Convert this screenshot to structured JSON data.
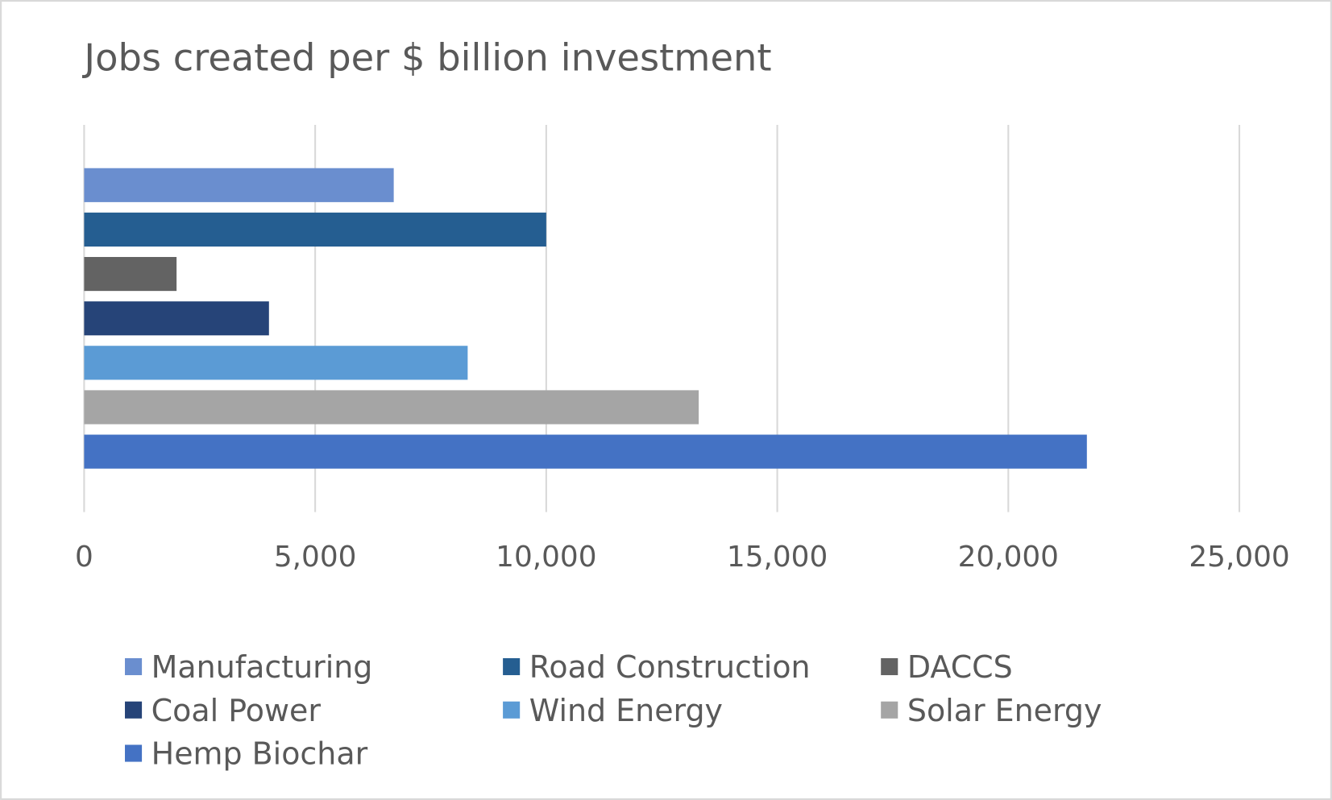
{
  "chart_data": {
    "type": "bar",
    "orientation": "horizontal",
    "title": "Jobs created per $ billion investment",
    "xlabel": "",
    "ylabel": "",
    "xlim": [
      0,
      25000
    ],
    "x_ticks": [
      "0",
      "5,000",
      "10,000",
      "15,000",
      "20,000",
      "25,000"
    ],
    "x_tick_values": [
      0,
      5000,
      10000,
      15000,
      20000,
      25000
    ],
    "grid": true,
    "legend_position": "bottom",
    "series": [
      {
        "name": "Manufacturing",
        "value": 6700,
        "color": "#6A8ECF"
      },
      {
        "name": "Road Construction",
        "value": 10000,
        "color": "#255E91"
      },
      {
        "name": "DACCS",
        "value": 2000,
        "color": "#636363"
      },
      {
        "name": "Coal Power",
        "value": 4000,
        "color": "#264478"
      },
      {
        "name": "Wind Energy",
        "value": 8300,
        "color": "#5B9BD5"
      },
      {
        "name": "Solar Energy",
        "value": 13300,
        "color": "#A5A5A5"
      },
      {
        "name": "Hemp Biochar",
        "value": 21700,
        "color": "#4472C4"
      }
    ]
  }
}
